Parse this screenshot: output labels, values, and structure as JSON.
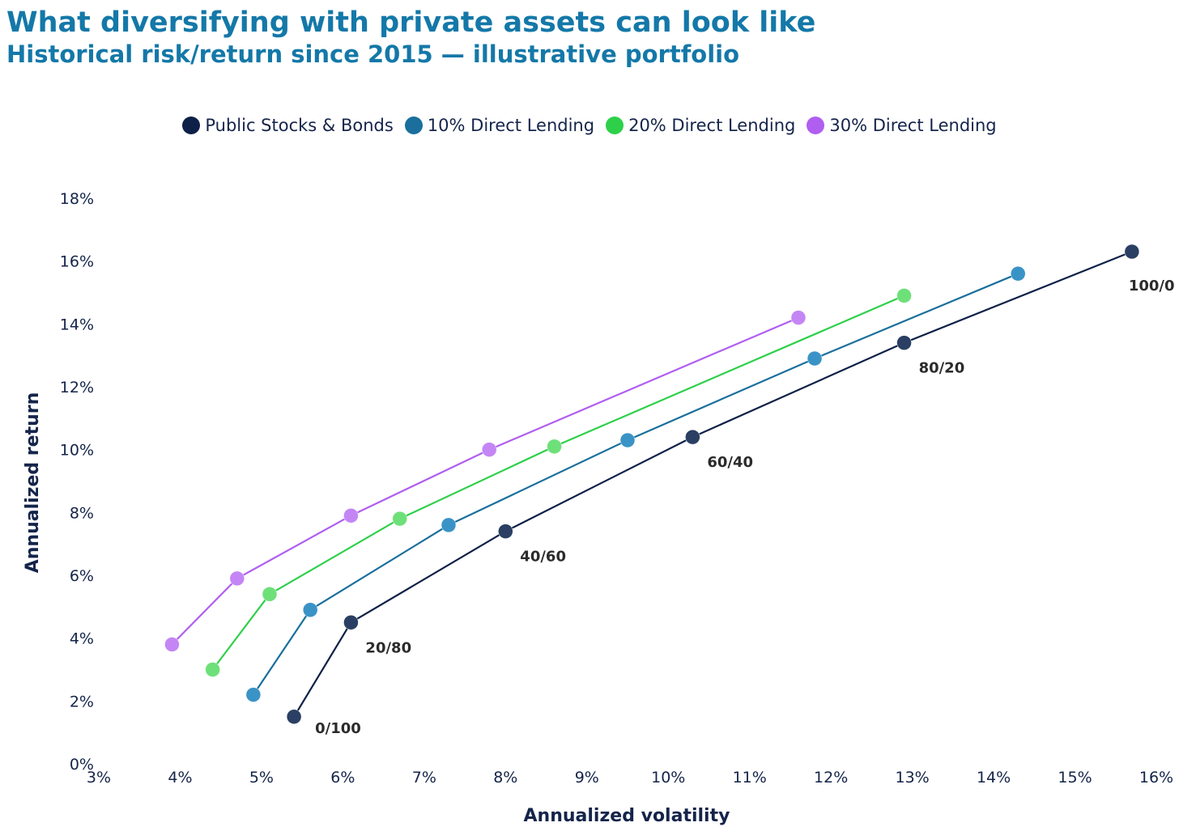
{
  "header": {
    "title": "What diversifying with private assets can look like",
    "subtitle": "Historical risk/return since 2015 — illustrative portfolio"
  },
  "chart_data": {
    "type": "line",
    "title": "What diversifying with private assets can look like",
    "subtitle": "Historical risk/return since 2015 — illustrative portfolio",
    "xlabel": "Annualized volatility",
    "ylabel": "Annualized return",
    "xlim": [
      3,
      16
    ],
    "ylim": [
      0,
      18
    ],
    "x_ticks": [
      3,
      4,
      5,
      6,
      7,
      8,
      9,
      10,
      11,
      12,
      13,
      14,
      15,
      16
    ],
    "y_ticks": [
      0,
      2,
      4,
      6,
      8,
      10,
      12,
      14,
      16,
      18
    ],
    "x_tick_labels": [
      "3%",
      "4%",
      "5%",
      "6%",
      "7%",
      "8%",
      "9%",
      "10%",
      "11%",
      "12%",
      "13%",
      "14%",
      "15%",
      "16%"
    ],
    "y_tick_labels": [
      "0%",
      "2%",
      "4%",
      "6%",
      "8%",
      "10%",
      "12%",
      "14%",
      "16%",
      "18%"
    ],
    "grid": false,
    "legend_position": "top-center",
    "series": [
      {
        "name": "Public Stocks & Bonds",
        "color": "#0d2047",
        "point_color": "#2a3f63",
        "x": [
          5.4,
          6.1,
          8.0,
          10.3,
          12.9,
          15.7
        ],
        "y": [
          1.5,
          4.5,
          7.4,
          10.4,
          13.4,
          16.3
        ],
        "labels": [
          "0/100",
          "20/80",
          "40/60",
          "60/40",
          "80/20",
          "100/0"
        ]
      },
      {
        "name": "10% Direct Lending",
        "color": "#1a6f9c",
        "point_color": "#3a93c6",
        "x": [
          4.9,
          5.6,
          7.3,
          9.5,
          11.8,
          14.3
        ],
        "y": [
          2.2,
          4.9,
          7.6,
          10.3,
          12.9,
          15.6
        ]
      },
      {
        "name": "20% Direct Lending",
        "color": "#2ed04a",
        "point_color": "#6ee07a",
        "x": [
          4.4,
          5.1,
          6.7,
          8.6,
          12.9
        ],
        "y": [
          3.0,
          5.4,
          7.8,
          10.1,
          14.9
        ]
      },
      {
        "name": "30% Direct Lending",
        "color": "#b05ef0",
        "point_color": "#c486f5",
        "x": [
          3.9,
          4.7,
          6.1,
          7.8,
          11.6
        ],
        "y": [
          3.8,
          5.9,
          7.9,
          10.0,
          14.2
        ]
      }
    ]
  }
}
